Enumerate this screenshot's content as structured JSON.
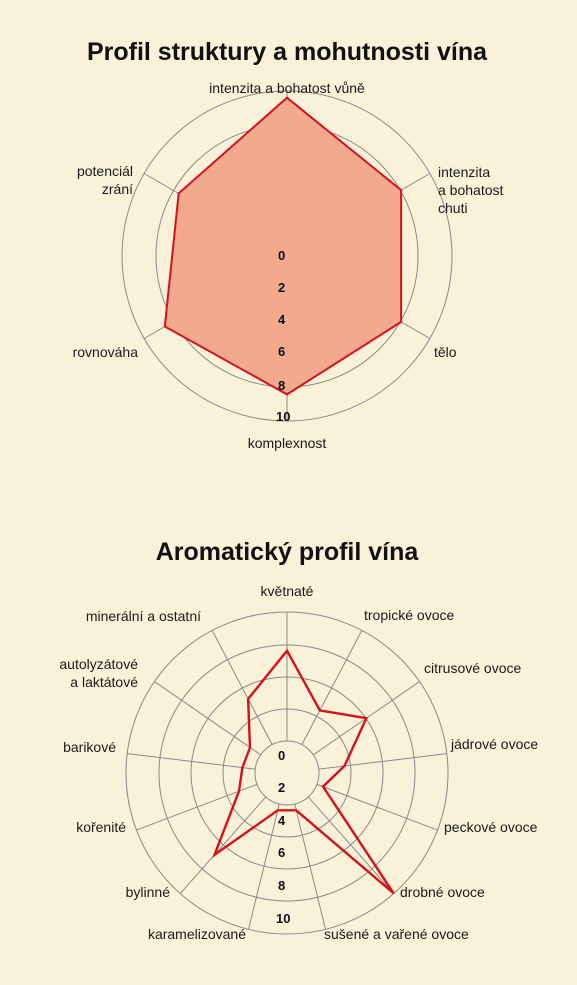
{
  "colors": {
    "background": "#f9f1d8",
    "series_stroke": "#d4121f",
    "series_fill": "#f2a98e",
    "grid": "#8a8a8a"
  },
  "chart_data": [
    {
      "type": "radar",
      "title": "Profil struktury a mohutnosti vína",
      "axes": [
        "intenzita a bohatost vůně",
        "intenzita a bohatost chuti",
        "tělo",
        "komplexnost",
        "rovnováha",
        "potenciál zrání"
      ],
      "ticks": [
        "0",
        "2",
        "4",
        "6",
        "8",
        "10"
      ],
      "range": [
        0,
        10
      ],
      "filled": true,
      "series": [
        {
          "values": [
            9.5,
            7.5,
            7.5,
            8.0,
            8.2,
            7.0
          ]
        }
      ]
    },
    {
      "type": "radar",
      "title": "Aromatický profil vína",
      "axes": [
        "květnaté",
        "tropické ovoce",
        "citrusové ovoce",
        "jádrové ovoce",
        "peckové ovoce",
        "drobné ovoce",
        "sušené a vařené ovoce",
        "karamelizované",
        "bylinné",
        "kořenité",
        "barikové",
        "autolyzátové a laktátové",
        "minerální a ostatní"
      ],
      "ticks": [
        "0",
        "2",
        "4",
        "6",
        "8",
        "10"
      ],
      "range": [
        0,
        10
      ],
      "filled": false,
      "series": [
        {
          "values": [
            7.0,
            3.0,
            5.0,
            2.0,
            0.5,
            10.0,
            0.5,
            0.5,
            6.0,
            1.5,
            1.0,
            1.0,
            4.0
          ]
        }
      ]
    }
  ]
}
